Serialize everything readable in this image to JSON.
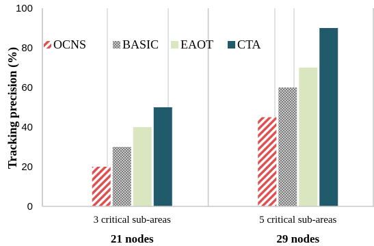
{
  "chart_data": {
    "type": "bar",
    "categories": [
      "3 critical sub-areas",
      "5 critical sub-areas"
    ],
    "group_labels": [
      "21 nodes",
      "29 nodes"
    ],
    "series": [
      {
        "name": "OCNS",
        "values": [
          20,
          45
        ],
        "color": "#e05050",
        "pattern": "diagonal-stripes"
      },
      {
        "name": "BASIC",
        "values": [
          30,
          60
        ],
        "color": "#9a9a9a",
        "pattern": "checker"
      },
      {
        "name": "EAOT",
        "values": [
          40,
          70
        ],
        "color": "#d9e6bf",
        "pattern": "solid"
      },
      {
        "name": "CTA",
        "values": [
          50,
          90
        ],
        "color": "#215a6a",
        "pattern": "solid"
      }
    ],
    "ylabel": "Tracking precision (%)",
    "xlabel": "",
    "ylim": [
      0,
      100
    ],
    "yticks": [
      0,
      20,
      40,
      60,
      80,
      100
    ],
    "grid": "vertical",
    "legend": "top-left"
  }
}
